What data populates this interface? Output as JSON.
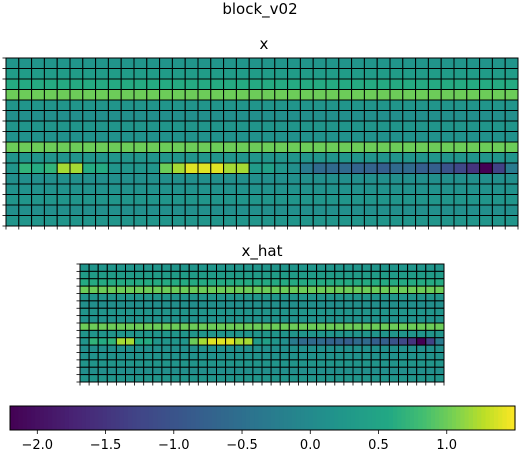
{
  "figure": {
    "suptitle": "block_v02"
  },
  "chart_data": [
    {
      "type": "heatmap",
      "title": "x",
      "n_rows": 16,
      "n_cols": 40,
      "colormap": "viridis",
      "vmin": -2.2,
      "vmax": 1.5,
      "row_bands": [
        0.2,
        0.35,
        0.6,
        1.0,
        0.2,
        0.1,
        0.2,
        0.15,
        1.0,
        0.2,
        0.1,
        0.1,
        0.15,
        0.2,
        0.1,
        0.2
      ],
      "special_row": {
        "row": 10,
        "values": [
          0.2,
          0.7,
          0.6,
          0.7,
          1.2,
          1.2,
          0.6,
          0.6,
          0.2,
          0.2,
          0.2,
          0.2,
          1.0,
          1.2,
          1.4,
          1.4,
          1.4,
          1.2,
          1.2,
          0.3,
          0.4,
          0.2,
          0.1,
          -0.3,
          -0.6,
          -0.6,
          -0.6,
          -0.7,
          -0.7,
          -0.8,
          -0.6,
          -0.6,
          -0.8,
          -0.8,
          -1.0,
          -1.2,
          -1.5,
          -2.2,
          -1.3,
          -0.3
        ]
      }
    },
    {
      "type": "heatmap",
      "title": "x_hat",
      "n_rows": 16,
      "n_cols": 40,
      "colormap": "viridis",
      "vmin": -2.2,
      "vmax": 1.5,
      "row_bands": [
        0.2,
        0.35,
        0.6,
        1.0,
        0.2,
        0.1,
        0.2,
        0.15,
        1.0,
        0.2,
        0.1,
        0.1,
        0.15,
        0.2,
        0.1,
        0.2
      ],
      "special_row": {
        "row": 10,
        "values": [
          0.2,
          0.7,
          0.6,
          0.7,
          1.2,
          1.2,
          0.6,
          0.6,
          0.2,
          0.2,
          0.2,
          0.2,
          1.0,
          1.2,
          1.4,
          1.4,
          1.4,
          1.2,
          1.2,
          0.3,
          0.4,
          0.2,
          0.1,
          -0.3,
          -0.6,
          -0.6,
          -0.6,
          -0.7,
          -0.7,
          -0.8,
          -0.6,
          -0.6,
          -0.8,
          -0.8,
          -1.0,
          -1.2,
          -1.5,
          -2.2,
          -1.3,
          -0.3
        ]
      }
    },
    {
      "type": "colorbar",
      "colormap": "viridis",
      "vmin": -2.2,
      "vmax": 1.5,
      "ticks": [
        -2.0,
        -1.5,
        -1.0,
        -0.5,
        0.0,
        0.5,
        1.0
      ],
      "tick_labels": [
        "−2.0",
        "−1.5",
        "−1.0",
        "−0.5",
        "0.0",
        "0.5",
        "1.0"
      ]
    }
  ]
}
